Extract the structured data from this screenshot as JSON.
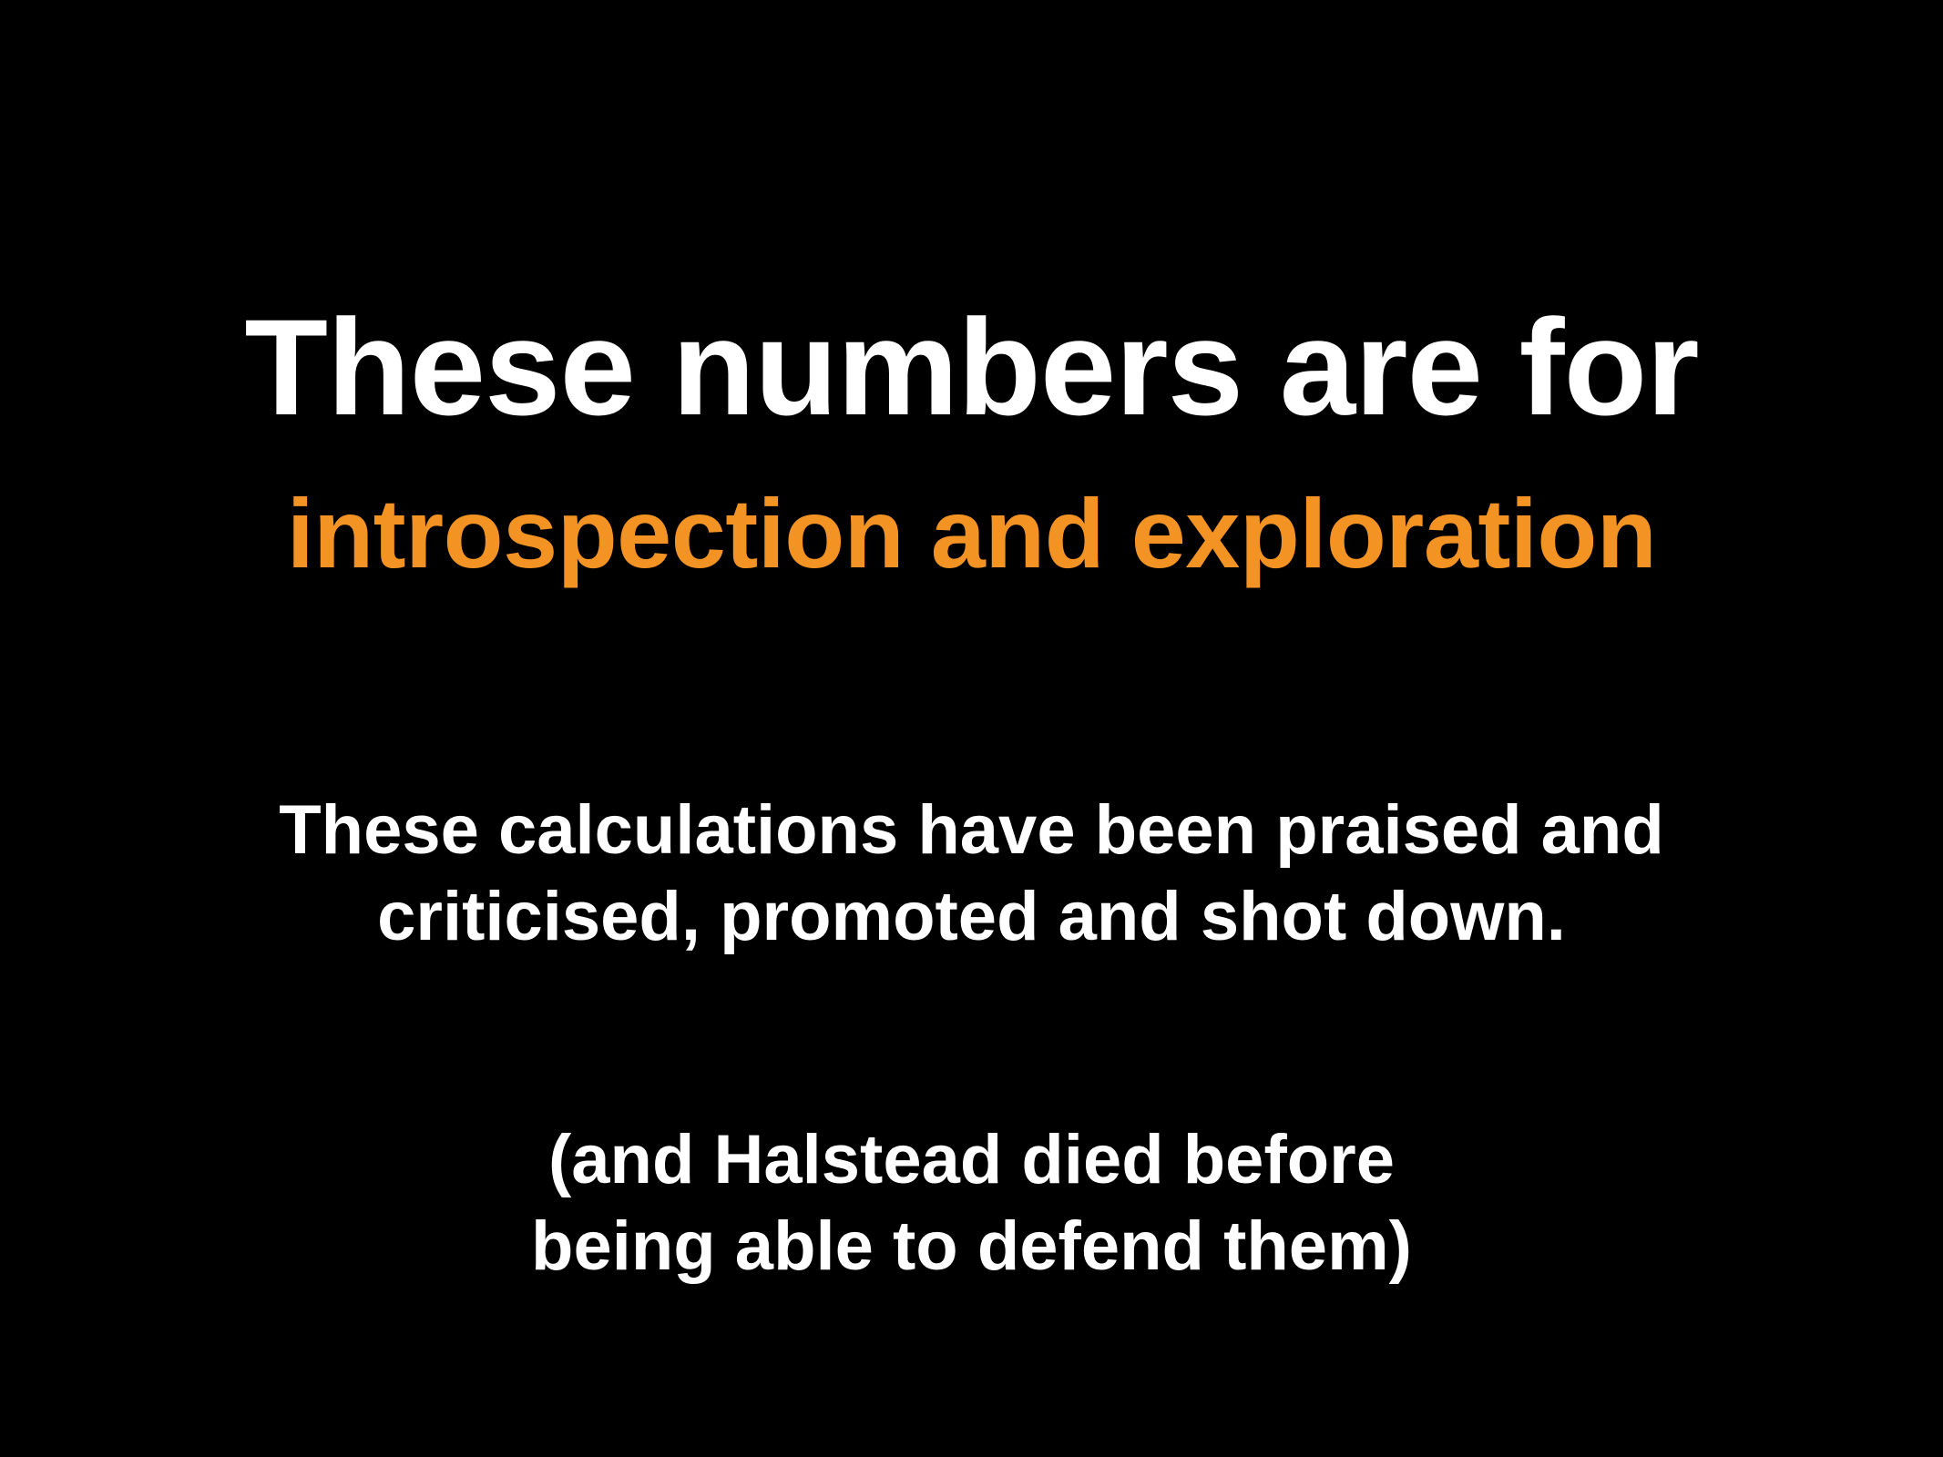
{
  "slide": {
    "title": "These numbers are for",
    "subtitle": "introspection and exploration",
    "body_lines": [
      "These calculations have been praised and",
      "criticised,  promoted and shot down."
    ],
    "note_lines": [
      "(and Halstead died before",
      "being able to defend them)"
    ]
  },
  "colors": {
    "background": "#000000",
    "text": "#ffffff",
    "accent": "#f39323"
  }
}
